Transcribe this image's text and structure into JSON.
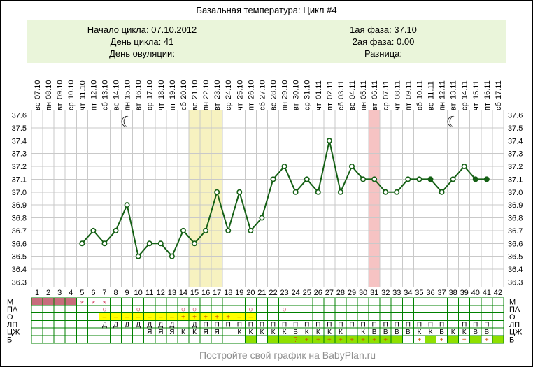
{
  "title": "Базальная температура: Цикл #4",
  "info": {
    "left": [
      "Начало цикла: 07.10.2012",
      "День цикла: 41",
      "День овуляции:"
    ],
    "right": [
      "1ая фаза: 37.10",
      "2ая фаза: 0.00",
      "Разница:"
    ]
  },
  "footer": "Постройте свой график на BabyPlan.ru",
  "colors": {
    "line": "#156015",
    "grid": "#c9c9c9",
    "table_border": "#008000",
    "info_bg": "#eaf5da",
    "footer_text": "#8f8f8f",
    "cell": {
      "r": "#c86c7c",
      "y": "#ffff00",
      "g": "#8fe000"
    }
  },
  "chart_data": {
    "type": "line",
    "title": "Базальная температура: Цикл #4",
    "ylim": [
      36.3,
      37.6
    ],
    "yticks": [
      37.6,
      37.5,
      37.4,
      37.3,
      37.2,
      37.1,
      37.0,
      36.9,
      36.8,
      36.7,
      36.6,
      36.5,
      36.4,
      36.3
    ],
    "grid": true,
    "day_numbers": [
      1,
      2,
      3,
      4,
      5,
      6,
      7,
      8,
      9,
      10,
      11,
      12,
      13,
      14,
      15,
      16,
      17,
      18,
      19,
      20,
      21,
      22,
      23,
      24,
      25,
      26,
      27,
      28,
      29,
      30,
      31,
      32,
      33,
      34,
      35,
      36,
      37,
      38,
      39,
      40,
      41,
      42
    ],
    "x_dates": [
      "07.10",
      "08.10",
      "09.10",
      "10.10",
      "11.10",
      "12.10",
      "13.10",
      "14.10",
      "15.10",
      "16.10",
      "17.10",
      "18.10",
      "19.10",
      "20.10",
      "21.10",
      "22.10",
      "23.10",
      "24.10",
      "25.10",
      "26.10",
      "27.10",
      "28.10",
      "29.10",
      "30.10",
      "31.10",
      "01.11",
      "02.11",
      "03.11",
      "04.11",
      "05.11",
      "06.11",
      "07.11",
      "08.11",
      "09.11",
      "10.11",
      "11.11",
      "12.11",
      "13.11",
      "14.11",
      "15.11",
      "16.11",
      "17.11"
    ],
    "x_weekdays": [
      "вс",
      "пн",
      "вт",
      "ср",
      "чт",
      "пт",
      "сб",
      "вс",
      "пн",
      "вт",
      "ср",
      "чт",
      "пт",
      "сб",
      "вс",
      "пн",
      "вт",
      "ср",
      "чт",
      "пт",
      "сб",
      "вс",
      "пн",
      "вт",
      "ср",
      "чт",
      "пт",
      "сб",
      "вс",
      "пн",
      "вт",
      "ср",
      "чт",
      "пт",
      "сб",
      "вс",
      "пн",
      "вт",
      "ср",
      "чт",
      "пт",
      "сб"
    ],
    "temps": [
      null,
      null,
      null,
      null,
      36.6,
      36.7,
      36.6,
      36.7,
      36.9,
      36.5,
      36.6,
      36.6,
      36.5,
      36.7,
      36.6,
      36.7,
      37.0,
      36.7,
      37.0,
      36.7,
      36.8,
      37.1,
      37.2,
      37.0,
      37.1,
      37.0,
      37.4,
      37.0,
      37.2,
      37.1,
      37.1,
      37.0,
      37.0,
      37.1,
      37.1,
      37.1,
      37.0,
      37.1,
      37.2,
      37.1,
      37.1,
      null
    ],
    "filled_marker_days": [
      36,
      40,
      41
    ],
    "moon_days": [
      9,
      38
    ],
    "moon_glyph": "☾",
    "bands": [
      {
        "from_day": 15,
        "to_day": 17,
        "color": "#f7f2c0"
      },
      {
        "from_day": 31,
        "to_day": 31,
        "color": "#f6c3c3"
      }
    ]
  },
  "table": {
    "rows": [
      {
        "label": "М",
        "text": "....***...................................",
        "bg": "rrrr......................................",
        "mark_color": "#d85570"
      },
      {
        "label": "ПА",
        "text": "......о..о...оо....о..о...................",
        "bg": "",
        "mark_color": "#d87585"
      },
      {
        "label": "О",
        "text": "......–––––––+++++––......................",
        "bg": "......yyyyyyyyyyyyyy......................",
        "mark_color": "#cc5500"
      },
      {
        "label": "ЛП",
        "text": "......ДДДДДДД.ДПППППППППППППППППППППП.ППП.",
        "bg": "",
        "mark_color": "#000000"
      },
      {
        "label": "ЦЖ",
        "text": "..........ЯЯЯККЯЯ.КККККВКККК.КВВВВККВККВВ.",
        "bg": "",
        "mark_color": "#000000"
      },
      {
        "label": "Б",
        "text": "...................–.––?++++++++..+.+.+.+.",
        "bg": "...................g.gggggggggggg..g.g.g.g.",
        "mark_color": "#cc5500"
      }
    ]
  }
}
